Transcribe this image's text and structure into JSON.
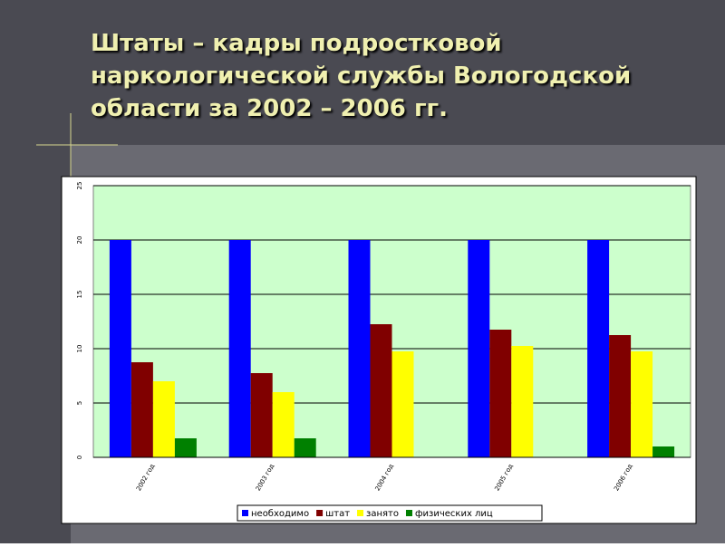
{
  "chart_data": {
    "type": "bar",
    "title": "Штаты – кадры подростковой наркологической службы Вологодской области за 2002 – 2006 гг.",
    "categories": [
      "2002 год",
      "2003 год",
      "2004 год",
      "2005 год",
      "2006 год"
    ],
    "series": [
      {
        "name": "необходимо",
        "color": "#0000ff",
        "values": [
          20,
          20,
          20,
          20,
          20
        ]
      },
      {
        "name": "штат",
        "color": "#800000",
        "values": [
          8.75,
          7.75,
          12.25,
          11.75,
          11.25
        ]
      },
      {
        "name": "занято",
        "color": "#ffff00",
        "values": [
          7,
          6,
          9.75,
          10.25,
          9.75
        ]
      },
      {
        "name": "физических лиц",
        "color": "#008000",
        "values": [
          1.75,
          1.75,
          0,
          0,
          1
        ]
      }
    ],
    "ylim": [
      0,
      25
    ],
    "yticks": [
      0,
      5,
      10,
      15,
      20,
      25
    ],
    "grid": true,
    "legend": "bottom"
  }
}
